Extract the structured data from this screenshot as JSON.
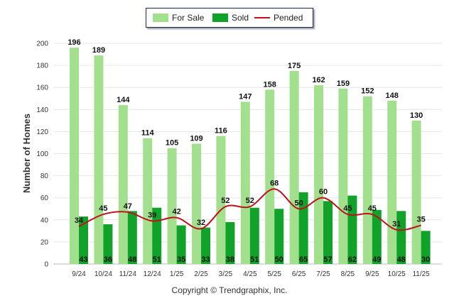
{
  "chart_data": {
    "type": "bar",
    "categories": [
      "9/24",
      "10/24",
      "11/24",
      "12/24",
      "1/25",
      "2/25",
      "3/25",
      "4/25",
      "5/25",
      "6/25",
      "7/25",
      "8/25",
      "9/25",
      "10/25",
      "11/25"
    ],
    "series": [
      {
        "name": "For Sale",
        "type": "bar",
        "color": "#a3e08e",
        "values": [
          196,
          189,
          144,
          114,
          105,
          109,
          116,
          147,
          158,
          175,
          162,
          159,
          152,
          148,
          130
        ]
      },
      {
        "name": "Sold",
        "type": "bar",
        "color": "#11a22a",
        "values": [
          43,
          36,
          48,
          51,
          35,
          33,
          38,
          51,
          50,
          65,
          57,
          62,
          49,
          48,
          30
        ]
      },
      {
        "name": "Pended",
        "type": "line",
        "color": "#c0111b",
        "values": [
          34,
          45,
          47,
          39,
          42,
          32,
          52,
          52,
          68,
          50,
          60,
          45,
          45,
          31,
          35
        ]
      }
    ],
    "ylabel": "Number of Homes",
    "yticks": [
      0,
      20,
      40,
      60,
      80,
      100,
      120,
      140,
      160,
      180,
      200
    ],
    "ylim": [
      0,
      200
    ],
    "legend_position": "top-center"
  },
  "copyright": "Copyright © Trendgraphix, Inc."
}
